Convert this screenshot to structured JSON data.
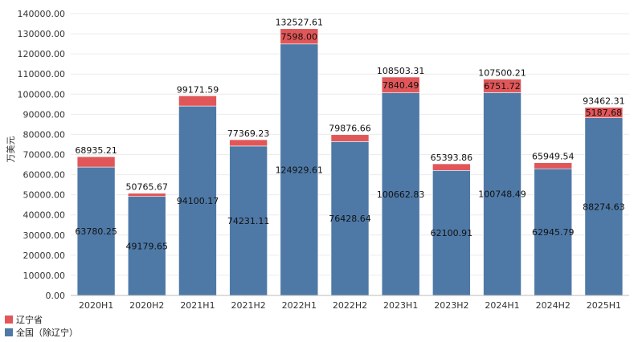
{
  "chart_data": {
    "type": "bar",
    "stacked": true,
    "categories": [
      "2020H1",
      "2020H2",
      "2021H1",
      "2021H2",
      "2022H1",
      "2022H2",
      "2023H1",
      "2023H2",
      "2024H1",
      "2024H2",
      "2025H1"
    ],
    "series": [
      {
        "name": "全国（除辽宁）",
        "color": "#4e79a7",
        "values": [
          63780.25,
          49179.65,
          94100.17,
          74231.11,
          124929.61,
          76428.64,
          100662.83,
          62100.91,
          100748.49,
          62945.79,
          88274.63
        ]
      },
      {
        "name": "辽宁省",
        "color": "#e15759",
        "values": [
          5154.96,
          1586.02,
          5071.42,
          3138.12,
          7598.0,
          3448.02,
          7840.49,
          3292.95,
          6751.72,
          3003.75,
          5187.68
        ]
      }
    ],
    "inner_labels": {
      "bottom": [
        "63780.25",
        "49179.65",
        "94100.17",
        "74231.11",
        "124929.61",
        "76428.64",
        "100662.83",
        "62100.91",
        "100748.49",
        "62945.79",
        "88274.63"
      ],
      "top": [
        "",
        "",
        "",
        "",
        "7598.00",
        "",
        "7840.49",
        "",
        "6751.72",
        "",
        "5187.68"
      ]
    },
    "totals": [
      "68935.21",
      "50765.67",
      "99171.59",
      "77369.23",
      "132527.61",
      "79876.66",
      "108503.31",
      "65393.86",
      "107500.21",
      "65949.54",
      "93462.31"
    ],
    "ylabel": "万美元",
    "ylim": [
      0,
      140000
    ],
    "yticks": [
      "0.00",
      "10000.00",
      "20000.00",
      "30000.00",
      "40000.00",
      "50000.00",
      "60000.00",
      "70000.00",
      "80000.00",
      "90000.00",
      "100000.00",
      "110000.00",
      "120000.00",
      "130000.00",
      "140000.00"
    ],
    "ytick_values": [
      0,
      10000,
      20000,
      30000,
      40000,
      50000,
      60000,
      70000,
      80000,
      90000,
      100000,
      110000,
      120000,
      130000,
      140000
    ],
    "grid": true,
    "legend_position": "bottom-left"
  },
  "legend": [
    {
      "label": "辽宁省",
      "color": "#e15759"
    },
    {
      "label": "全国（除辽宁）",
      "color": "#4e79a7"
    }
  ]
}
